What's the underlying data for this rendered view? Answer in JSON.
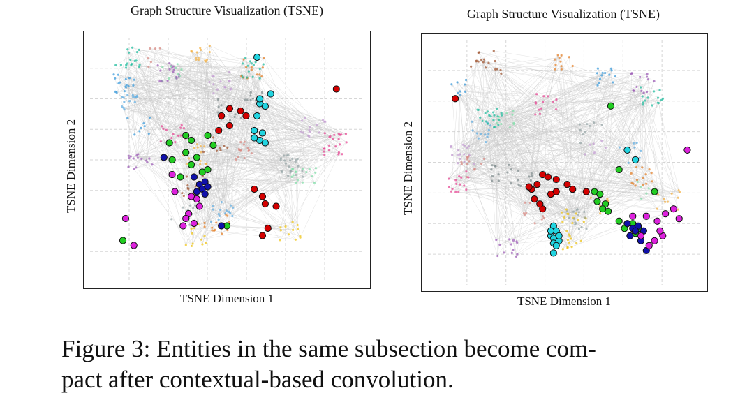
{
  "figure": {
    "caption_lines": [
      "Figure 3: Entities in the same subsection become com-",
      "pact after contextual-based convolution."
    ]
  },
  "colors": {
    "red": "#d40000",
    "green": "#22cc22",
    "cyan": "#22d4e0",
    "blue": "#1010aa",
    "magenta": "#dd22dd",
    "edge": "#c8c8c8",
    "grid": "#d6d6d6"
  },
  "chart_data": [
    {
      "type": "scatter",
      "title": "Graph Structure Visualization (TSNE)",
      "xlabel": "TSNE Dimension 1",
      "ylabel": "TSNE Dimension 2",
      "xlim": [
        0,
        100
      ],
      "ylim": [
        0,
        100
      ],
      "grid": true,
      "background_seed": 7,
      "background_count": 380,
      "series": [
        {
          "name": "red",
          "color": "#d40000",
          "points": [
            [
              48,
              68
            ],
            [
              51,
              71
            ],
            [
              55,
              70
            ],
            [
              47,
              62
            ],
            [
              60,
              38
            ],
            [
              63,
              35
            ],
            [
              64,
              32
            ],
            [
              68,
              31
            ],
            [
              65,
              22
            ],
            [
              63,
              19
            ],
            [
              90,
              79
            ],
            [
              51,
              64
            ],
            [
              57,
              68
            ]
          ]
        },
        {
          "name": "green",
          "color": "#22cc22",
          "points": [
            [
              29,
              57
            ],
            [
              35,
              60
            ],
            [
              37,
              58
            ],
            [
              43,
              60
            ],
            [
              45,
              56
            ],
            [
              39,
              51
            ],
            [
              37,
              48
            ],
            [
              41,
              45
            ],
            [
              43,
              46
            ],
            [
              33,
              43
            ],
            [
              12,
              17
            ],
            [
              50,
              23
            ],
            [
              30,
              50
            ],
            [
              35,
              53
            ]
          ]
        },
        {
          "name": "cyan",
          "color": "#22d4e0",
          "points": [
            [
              62,
              73
            ],
            [
              64,
              72
            ],
            [
              61,
              68
            ],
            [
              60,
              62
            ],
            [
              63,
              61
            ],
            [
              62,
              58
            ],
            [
              64,
              57
            ],
            [
              60,
              59
            ],
            [
              66,
              77
            ],
            [
              62,
              75
            ],
            [
              61,
              92
            ]
          ]
        },
        {
          "name": "blue",
          "color": "#1010aa",
          "points": [
            [
              38,
              43
            ],
            [
              40,
              40
            ],
            [
              42,
              41
            ],
            [
              41,
              38
            ],
            [
              43,
              39
            ],
            [
              39,
              37
            ],
            [
              42,
              36
            ],
            [
              27,
              51
            ],
            [
              48,
              23
            ]
          ]
        },
        {
          "name": "magenta",
          "color": "#dd22dd",
          "points": [
            [
              31,
              37
            ],
            [
              37,
              35
            ],
            [
              39,
              34
            ],
            [
              40,
              31
            ],
            [
              36,
              28
            ],
            [
              35,
              26
            ],
            [
              34,
              23
            ],
            [
              38,
              24
            ],
            [
              30,
              44
            ],
            [
              13,
              26
            ],
            [
              16,
              15
            ]
          ]
        }
      ]
    },
    {
      "type": "scatter",
      "title": "Graph Structure Visualization (TSNE)",
      "xlabel": "TSNE Dimension 1",
      "ylabel": "TSNE Dimension 2",
      "xlim": [
        0,
        100
      ],
      "ylim": [
        0,
        100
      ],
      "grid": true,
      "background_seed": 19,
      "background_count": 330,
      "series": [
        {
          "name": "red",
          "color": "#d40000",
          "points": [
            [
              42,
              45
            ],
            [
              44,
              44
            ],
            [
              47,
              43
            ],
            [
              51,
              41
            ],
            [
              53,
              39
            ],
            [
              47,
              38
            ],
            [
              45,
              37
            ],
            [
              39,
              35
            ],
            [
              40,
              41
            ],
            [
              38,
              39
            ],
            [
              42,
              31
            ],
            [
              41,
              33
            ],
            [
              37,
              40
            ],
            [
              58,
              38
            ],
            [
              10,
              76
            ]
          ]
        },
        {
          "name": "green",
          "color": "#22cc22",
          "points": [
            [
              61,
              38
            ],
            [
              63,
              37
            ],
            [
              62,
              34
            ],
            [
              65,
              33
            ],
            [
              66,
              30
            ],
            [
              64,
              31
            ],
            [
              70,
              26
            ],
            [
              75,
              25
            ],
            [
              77,
              23
            ],
            [
              76,
              21
            ],
            [
              72,
              23
            ],
            [
              83,
              38
            ],
            [
              67,
              73
            ],
            [
              70,
              47
            ]
          ]
        },
        {
          "name": "cyan",
          "color": "#22d4e0",
          "points": [
            [
              46,
              24
            ],
            [
              47,
              22
            ],
            [
              45,
              20
            ],
            [
              46,
              19
            ],
            [
              48,
              18
            ],
            [
              46,
              17
            ],
            [
              47,
              16
            ],
            [
              48,
              20
            ],
            [
              45,
              22
            ],
            [
              46,
              13
            ],
            [
              76,
              51
            ],
            [
              73,
              55
            ]
          ]
        },
        {
          "name": "blue",
          "color": "#1010aa",
          "points": [
            [
              73,
              25
            ],
            [
              75,
              23
            ],
            [
              77,
              24
            ],
            [
              76,
              22
            ],
            [
              74,
              20
            ],
            [
              79,
              22
            ],
            [
              78,
              18
            ],
            [
              80,
              14
            ]
          ]
        },
        {
          "name": "magenta",
          "color": "#dd22dd",
          "points": [
            [
              80,
              28
            ],
            [
              84,
              26
            ],
            [
              87,
              29
            ],
            [
              86,
              20
            ],
            [
              83,
              18
            ],
            [
              81,
              16
            ],
            [
              78,
              20
            ],
            [
              85,
              22
            ],
            [
              90,
              31
            ],
            [
              92,
              27
            ],
            [
              95,
              55
            ],
            [
              75,
              28
            ]
          ]
        }
      ]
    }
  ]
}
